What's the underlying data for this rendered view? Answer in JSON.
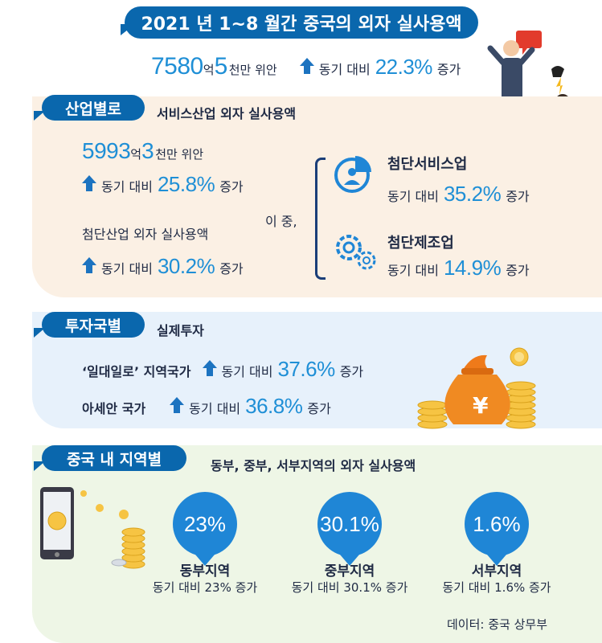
{
  "title": "2021 년 1~8 월간 중국의 외자 실사용액",
  "summary": {
    "amount_num1": "7580",
    "amount_unit1": "억",
    "amount_num2": "5",
    "amount_unit2": "천만 위안",
    "yoy_prefix": "동기 대비",
    "yoy_value": "22.3%",
    "yoy_suffix": "증가"
  },
  "industry": {
    "label": "산업별로",
    "heading": "서비스산업 외자 실사용액",
    "service_amount_num1": "5993",
    "service_amount_unit1": "억",
    "service_amount_num2": "3",
    "service_amount_unit2": "천만 위안",
    "service_yoy_prefix": "동기 대비",
    "service_yoy_value": "25.8%",
    "service_yoy_suffix": "증가",
    "hightech_heading": "첨단산업 외자 실사용액",
    "hightech_yoy_prefix": "동기 대비",
    "hightech_yoy_value": "30.2%",
    "hightech_yoy_suffix": "증가",
    "among": "이 중,",
    "sub": [
      {
        "name": "첨단서비스업",
        "prefix": "동기 대비",
        "value": "35.2%",
        "suffix": "증가",
        "icon": "pie-chart-person-icon"
      },
      {
        "name": "첨단제조업",
        "prefix": "동기 대비",
        "value": "14.9%",
        "suffix": "증가",
        "icon": "gear-icon"
      }
    ]
  },
  "country": {
    "label": "투자국별",
    "heading": "실제투자",
    "rows": [
      {
        "name": "‘일대일로’ 지역국가",
        "prefix": "동기 대비",
        "value": "37.6%",
        "suffix": "증가"
      },
      {
        "name": "아세안 국가",
        "prefix": "동기 대비",
        "value": "36.8%",
        "suffix": "증가"
      }
    ],
    "money_symbol": "¥"
  },
  "regions": {
    "label": "중국 내 지역별",
    "heading": "동부, 중부, 서부지역의 외자 실사용액",
    "items": [
      {
        "bubble": "23%",
        "name": "동부지역",
        "desc": "동기 대비 23% 증가"
      },
      {
        "bubble": "30.1%",
        "name": "중부지역",
        "desc": "동기 대비 30.1% 증가"
      },
      {
        "bubble": "1.6%",
        "name": "서부지역",
        "desc": "동기 대비 1.6% 증가"
      }
    ]
  },
  "source": "데이터: 중국 상무부",
  "colors": {
    "primary": "#0a67ad",
    "accent": "#1f8fd6",
    "section1_bg": "#fbf0e4",
    "section2_bg": "#e7f1fb",
    "section3_bg": "#eef6e6"
  }
}
